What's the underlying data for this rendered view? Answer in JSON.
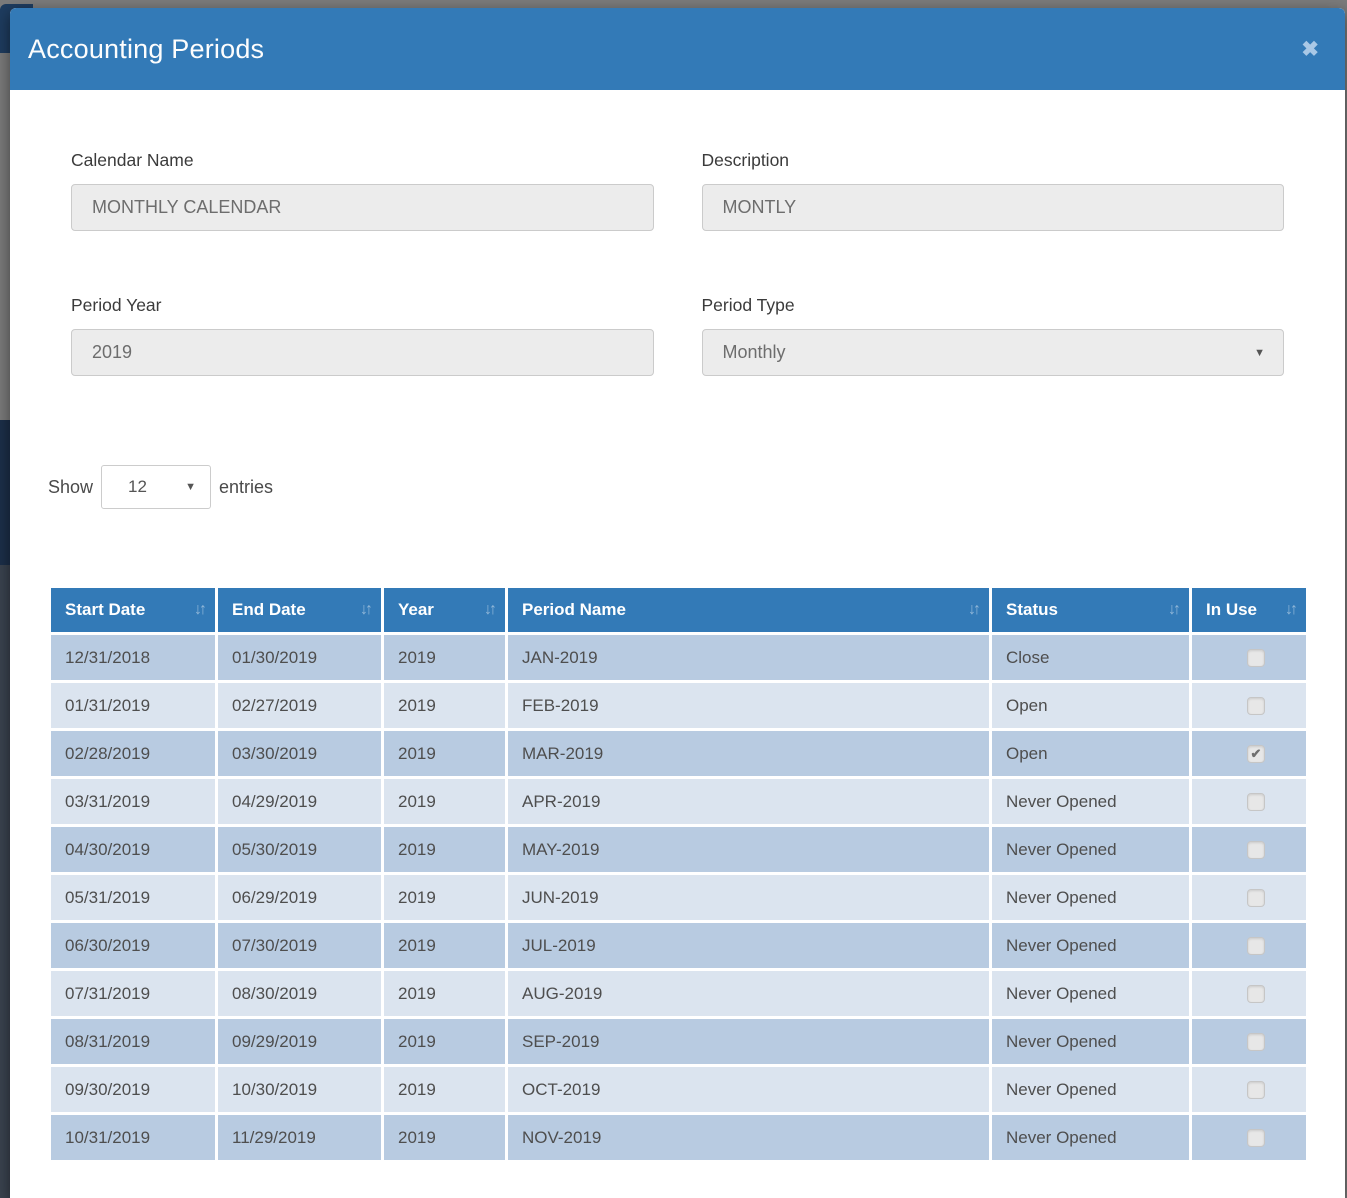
{
  "icons": {
    "close": "✖",
    "sort": "↓↑",
    "dropdown": "▼",
    "check": "✔"
  },
  "modal": {
    "title": "Accounting Periods"
  },
  "form": {
    "calendar_name": {
      "label": "Calendar Name",
      "value": "MONTHLY CALENDAR"
    },
    "description": {
      "label": "Description",
      "value": "MONTLY"
    },
    "period_year": {
      "label": "Period Year",
      "value": "2019"
    },
    "period_type": {
      "label": "Period Type",
      "value": "Monthly"
    }
  },
  "entries_control": {
    "show_label": "Show",
    "selected": "12",
    "entries_label": "entries"
  },
  "table": {
    "columns": [
      {
        "label": "Start Date",
        "sortable": true
      },
      {
        "label": "End Date",
        "sortable": true
      },
      {
        "label": "Year",
        "sortable": true
      },
      {
        "label": "Period Name",
        "sortable": true
      },
      {
        "label": "Status",
        "sortable": true
      },
      {
        "label": "In Use",
        "sortable": true
      }
    ],
    "rows": [
      {
        "start_date": "12/31/2018",
        "end_date": "01/30/2019",
        "year": "2019",
        "period_name": "JAN-2019",
        "status": "Close",
        "in_use": false
      },
      {
        "start_date": "01/31/2019",
        "end_date": "02/27/2019",
        "year": "2019",
        "period_name": "FEB-2019",
        "status": "Open",
        "in_use": false
      },
      {
        "start_date": "02/28/2019",
        "end_date": "03/30/2019",
        "year": "2019",
        "period_name": "MAR-2019",
        "status": "Open",
        "in_use": true
      },
      {
        "start_date": "03/31/2019",
        "end_date": "04/29/2019",
        "year": "2019",
        "period_name": "APR-2019",
        "status": "Never Opened",
        "in_use": false
      },
      {
        "start_date": "04/30/2019",
        "end_date": "05/30/2019",
        "year": "2019",
        "period_name": "MAY-2019",
        "status": "Never Opened",
        "in_use": false
      },
      {
        "start_date": "05/31/2019",
        "end_date": "06/29/2019",
        "year": "2019",
        "period_name": "JUN-2019",
        "status": "Never Opened",
        "in_use": false
      },
      {
        "start_date": "06/30/2019",
        "end_date": "07/30/2019",
        "year": "2019",
        "period_name": "JUL-2019",
        "status": "Never Opened",
        "in_use": false
      },
      {
        "start_date": "07/31/2019",
        "end_date": "08/30/2019",
        "year": "2019",
        "period_name": "AUG-2019",
        "status": "Never Opened",
        "in_use": false
      },
      {
        "start_date": "08/31/2019",
        "end_date": "09/29/2019",
        "year": "2019",
        "period_name": "SEP-2019",
        "status": "Never Opened",
        "in_use": false
      },
      {
        "start_date": "09/30/2019",
        "end_date": "10/30/2019",
        "year": "2019",
        "period_name": "OCT-2019",
        "status": "Never Opened",
        "in_use": false
      },
      {
        "start_date": "10/31/2019",
        "end_date": "11/29/2019",
        "year": "2019",
        "period_name": "NOV-2019",
        "status": "Never Opened",
        "in_use": false
      }
    ]
  },
  "colors": {
    "header_blue": "#337ab7",
    "row_odd": "#b8cbe1",
    "row_even": "#dbe4ef",
    "input_bg": "#ececec",
    "backdrop_gray": "#7b7b7b"
  }
}
